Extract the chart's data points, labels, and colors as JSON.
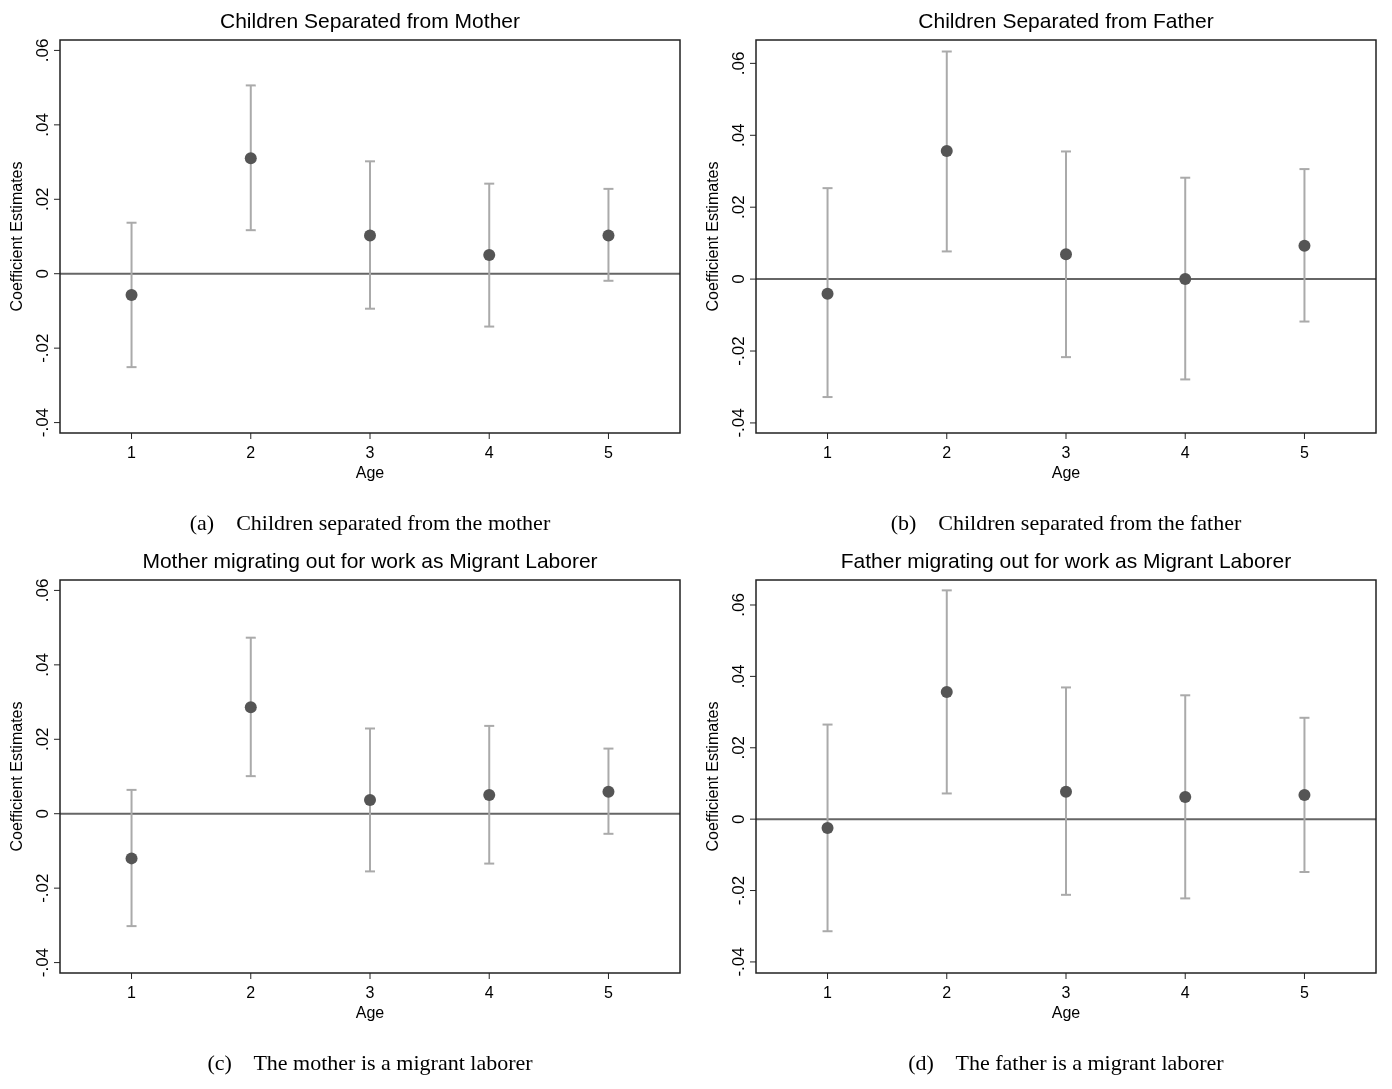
{
  "chart_data": [
    {
      "type": "scatter",
      "title": "Children Separated from Mother",
      "xlabel": "Age",
      "ylabel": "Coefficient Estimates",
      "x": [
        1,
        2,
        3,
        4,
        5
      ],
      "xlim": [
        0.4,
        5.6
      ],
      "xticks": [
        1,
        2,
        3,
        4,
        5
      ],
      "ylim": [
        -0.0428,
        0.0628
      ],
      "yticks": [
        {
          "value": -0.04,
          "label": "-.04"
        },
        {
          "value": -0.02,
          "label": "-.02"
        },
        {
          "value": 0,
          "label": "0"
        },
        {
          "value": 0.02,
          "label": ".02"
        },
        {
          "value": 0.04,
          "label": ".04"
        },
        {
          "value": 0.06,
          "label": ".06"
        }
      ],
      "marker": "circle",
      "color": "#555555",
      "values": [
        -0.0057,
        0.031,
        0.0103,
        0.005,
        0.0103
      ],
      "errors": [
        [
          -0.0251,
          0.0137
        ],
        [
          0.0117,
          0.0506
        ],
        [
          -0.0094,
          0.0302
        ],
        [
          -0.0142,
          0.0242
        ],
        [
          -0.0019,
          0.0228
        ]
      ],
      "ref_lines": [
        {
          "axis": "y",
          "value": 0,
          "color": "#666666"
        }
      ],
      "annotations": [
        "(a)    Children separated from the mother"
      ]
    },
    {
      "type": "scatter",
      "title": "Children Separated from Father",
      "xlabel": "Age",
      "ylabel": "Coefficient Estimates",
      "x": [
        1,
        2,
        3,
        4,
        5
      ],
      "xlim": [
        0.4,
        5.6
      ],
      "xticks": [
        1,
        2,
        3,
        4,
        5
      ],
      "ylim": [
        -0.0428,
        0.0665
      ],
      "yticks": [
        {
          "value": -0.04,
          "label": "-.04"
        },
        {
          "value": -0.02,
          "label": "-.02"
        },
        {
          "value": 0,
          "label": "0"
        },
        {
          "value": 0.02,
          "label": ".02"
        },
        {
          "value": 0.04,
          "label": ".04"
        },
        {
          "value": 0.06,
          "label": ".06"
        }
      ],
      "marker": "circle",
      "color": "#555555",
      "values": [
        -0.0041,
        0.0356,
        0.0069,
        0,
        0.0093
      ],
      "errors": [
        [
          -0.0328,
          0.0253
        ],
        [
          0.0077,
          0.0633
        ],
        [
          -0.0217,
          0.0355
        ],
        [
          -0.0279,
          0.0282
        ],
        [
          -0.0118,
          0.0306
        ]
      ],
      "ref_lines": [
        {
          "axis": "y",
          "value": 0,
          "color": "#666666"
        }
      ],
      "annotations": [
        "(b)    Children separated from the father"
      ]
    },
    {
      "type": "scatter",
      "title": "Mother migrating out for work as Migrant Laborer",
      "xlabel": "Age",
      "ylabel": "Coefficient Estimates",
      "x": [
        1,
        2,
        3,
        4,
        5
      ],
      "xlim": [
        0.4,
        5.6
      ],
      "xticks": [
        1,
        2,
        3,
        4,
        5
      ],
      "ylim": [
        -0.0428,
        0.0628
      ],
      "yticks": [
        {
          "value": -0.04,
          "label": "-.04"
        },
        {
          "value": -0.02,
          "label": "-.02"
        },
        {
          "value": 0,
          "label": "0"
        },
        {
          "value": 0.02,
          "label": ".02"
        },
        {
          "value": 0.04,
          "label": ".04"
        },
        {
          "value": 0.06,
          "label": ".06"
        }
      ],
      "marker": "circle",
      "color": "#555555",
      "values": [
        -0.012,
        0.0286,
        0.0037,
        0.005,
        0.0059
      ],
      "errors": [
        [
          -0.0302,
          0.0064
        ],
        [
          0.0101,
          0.0473
        ],
        [
          -0.0155,
          0.0229
        ],
        [
          -0.0134,
          0.0236
        ],
        [
          -0.0054,
          0.0175
        ]
      ],
      "ref_lines": [
        {
          "axis": "y",
          "value": 0,
          "color": "#666666"
        }
      ],
      "annotations": [
        "(c)    The mother is a migrant laborer"
      ]
    },
    {
      "type": "scatter",
      "title": "Father migrating out for work as Migrant Laborer",
      "xlabel": "Age",
      "ylabel": "Coefficient Estimates",
      "x": [
        1,
        2,
        3,
        4,
        5
      ],
      "xlim": [
        0.4,
        5.6
      ],
      "xticks": [
        1,
        2,
        3,
        4,
        5
      ],
      "ylim": [
        -0.0431,
        0.067
      ],
      "yticks": [
        {
          "value": -0.04,
          "label": "-.04"
        },
        {
          "value": -0.02,
          "label": "-.02"
        },
        {
          "value": 0,
          "label": "0"
        },
        {
          "value": 0.02,
          "label": ".02"
        },
        {
          "value": 0.04,
          "label": ".04"
        },
        {
          "value": 0.06,
          "label": ".06"
        }
      ],
      "marker": "circle",
      "color": "#555555",
      "values": [
        -0.0025,
        0.0356,
        0.0077,
        0.0062,
        0.0068
      ],
      "errors": [
        [
          -0.0314,
          0.0265
        ],
        [
          0.0072,
          0.0641
        ],
        [
          -0.0212,
          0.0369
        ],
        [
          -0.0222,
          0.0347
        ],
        [
          -0.0148,
          0.0284
        ]
      ],
      "ref_lines": [
        {
          "axis": "y",
          "value": 0,
          "color": "#666666"
        }
      ],
      "annotations": [
        "(d)    The father is a migrant laborer"
      ]
    }
  ]
}
